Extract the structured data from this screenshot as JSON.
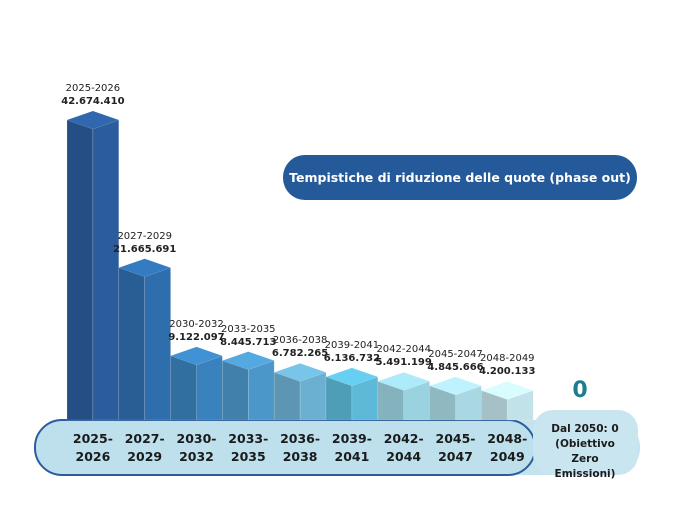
{
  "chart_data": {
    "type": "bar",
    "title": "Tempistiche di riduzione delle quote (phase out)",
    "categories": [
      "2025-2026",
      "2027-2029",
      "2030-2032",
      "2033-2035",
      "2036-2038",
      "2039-2041",
      "2042-2044",
      "2045-2047",
      "2048-2049"
    ],
    "values": [
      42674410,
      21665691,
      9122097,
      8445713,
      6782265,
      6136732,
      5491199,
      4845666,
      4200133
    ],
    "value_labels": [
      "42.674.410",
      "21.665.691",
      "9.122.097",
      "8.445.713",
      "6.782.265",
      "6.136.732",
      "5.491.199",
      "4.845.666",
      "4.200.133"
    ],
    "colors": [
      "#2b5c9c",
      "#2f6ead",
      "#3a82bd",
      "#4b97c9",
      "#6cb0d1",
      "#5cbad8",
      "#9bd2df",
      "#a9d8e3",
      "#c2e2e9"
    ],
    "target": {
      "value": 0,
      "text": "Dal 2050: 0 (Obiettivo Zero Emissioni)"
    }
  }
}
